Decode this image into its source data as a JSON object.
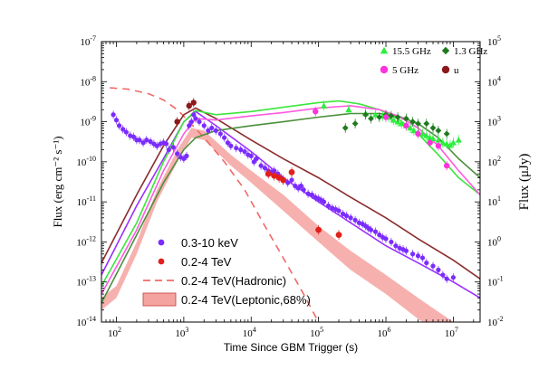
{
  "chart_data": {
    "type": "scatter",
    "title": "",
    "xlabel": "Time Since GBM Trigger (s)",
    "ylabel": "Flux (erg cm⁻² s⁻¹)",
    "ylabel_right": "Flux (μJy)",
    "x_scale": "log",
    "y_scale": "log",
    "xlim": [
      60,
      25000000
    ],
    "ylim": [
      1e-14,
      1e-07
    ],
    "ylim_right": [
      0.01,
      100000
    ],
    "x_ticks": [
      {
        "value": 100,
        "label": "10",
        "exp": "2"
      },
      {
        "value": 1000,
        "label": "10",
        "exp": "3"
      },
      {
        "value": 10000,
        "label": "10",
        "exp": "4"
      },
      {
        "value": 100000,
        "label": "10",
        "exp": "5"
      },
      {
        "value": 1000000,
        "label": "10",
        "exp": "6"
      },
      {
        "value": 10000000,
        "label": "10",
        "exp": "7"
      }
    ],
    "y_ticks": [
      {
        "value": 1e-14,
        "label": "10",
        "exp": "-14"
      },
      {
        "value": 1e-13,
        "label": "10",
        "exp": "-13"
      },
      {
        "value": 1e-12,
        "label": "10",
        "exp": "-12"
      },
      {
        "value": 1e-11,
        "label": "10",
        "exp": "-11"
      },
      {
        "value": 1e-10,
        "label": "10",
        "exp": "-10"
      },
      {
        "value": 1e-09,
        "label": "10",
        "exp": "-9"
      },
      {
        "value": 1e-08,
        "label": "10",
        "exp": "-8"
      },
      {
        "value": 1e-07,
        "label": "10",
        "exp": "-7"
      }
    ],
    "y_ticks_right": [
      {
        "value": 0.01,
        "label": "10",
        "exp": "-2"
      },
      {
        "value": 0.1,
        "label": "10",
        "exp": "-1"
      },
      {
        "value": 1,
        "label": "10",
        "exp": "0"
      },
      {
        "value": 10,
        "label": "10",
        "exp": "1"
      },
      {
        "value": 100,
        "label": "10",
        "exp": "2"
      },
      {
        "value": 1000,
        "label": "10",
        "exp": "3"
      },
      {
        "value": 10000,
        "label": "10",
        "exp": "4"
      },
      {
        "value": 100000,
        "label": "10",
        "exp": "5"
      }
    ],
    "legend": {
      "placement": "bottom-center",
      "entries": [
        {
          "label": "0.3-10 keV",
          "style": "dot",
          "color": "#7a2cff"
        },
        {
          "label": "0.2-4 TeV",
          "style": "dot",
          "color": "#e0201c"
        },
        {
          "label": "0.2-4 TeV(Hadronic)",
          "style": "dash",
          "color": "#ef6a66"
        },
        {
          "label": "0.2-4 TeV(Leptonic,68%)",
          "style": "band",
          "color": "#f4a3a0"
        }
      ]
    },
    "radio_legend": {
      "placement": "top-right",
      "entries": [
        {
          "label": "15.5 GHz",
          "marker": "triangle",
          "color": "#2bef3c"
        },
        {
          "label": "1.3 GHz",
          "marker": "diamond",
          "color": "#1f7a1f"
        },
        {
          "label": "5 GHz",
          "marker": "circle",
          "color": "#ff33dd"
        },
        {
          "label": "u",
          "marker": "circle",
          "color": "#8b1a1a"
        }
      ]
    },
    "series": [
      {
        "name": "0.3-10 keV",
        "kind": "points",
        "color": "#7a2cff",
        "marker": "circle",
        "size": 2.6,
        "x": [
          90,
          100,
          110,
          125,
          140,
          160,
          180,
          200,
          220,
          250,
          280,
          320,
          360,
          400,
          450,
          500,
          550,
          600,
          700,
          800,
          900,
          1000,
          1100,
          1200,
          1300,
          1400,
          1500,
          1700,
          2000,
          2300,
          2600,
          3000,
          3500,
          4000,
          4500,
          5000,
          6000,
          7000,
          8000,
          9000,
          10000,
          11000,
          12000,
          14000,
          16000,
          18000,
          20000,
          22000,
          25000,
          28000,
          30000,
          35000,
          40000,
          45000,
          50000,
          55000,
          60000,
          70000,
          80000,
          90000,
          100000,
          110000,
          120000,
          140000,
          160000,
          180000,
          200000,
          230000,
          260000,
          300000,
          350000,
          400000,
          450000,
          500000,
          550000,
          600000,
          700000,
          800000,
          900000,
          1000000,
          1200000,
          1400000,
          1600000,
          1800000,
          2000000,
          2500000,
          3000000,
          3500000,
          4000000,
          5000000,
          6000000,
          7000000,
          8000000,
          10000000
        ],
        "y": [
          1.5e-09,
          1.1e-09,
          8e-10,
          6.5e-10,
          5.5e-10,
          4.5e-10,
          4.2e-10,
          3.5e-10,
          3.5e-10,
          3e-10,
          3.5e-10,
          3.2e-10,
          2.8e-10,
          2.5e-10,
          2.8e-10,
          3e-10,
          2.8e-10,
          2e-10,
          2.3e-10,
          1.6e-10,
          1.3e-10,
          1.2e-10,
          1.4e-10,
          8e-10,
          1e-09,
          1.5e-09,
          1.2e-09,
          1e-09,
          8e-10,
          6e-10,
          7e-10,
          6e-10,
          5e-10,
          4e-10,
          3e-10,
          2.5e-10,
          2.2e-10,
          2e-10,
          1.8e-10,
          1.5e-10,
          1.4e-10,
          1e-10,
          1.2e-10,
          8e-11,
          7e-11,
          6e-11,
          5.5e-11,
          6e-11,
          5e-11,
          4e-11,
          3.5e-11,
          3e-11,
          3.5e-11,
          2.5e-11,
          2.2e-11,
          2.5e-11,
          2e-11,
          1.6e-11,
          1.5e-11,
          1.3e-11,
          1.2e-11,
          1.1e-11,
          1e-11,
          8e-12,
          7e-12,
          6.5e-12,
          6e-12,
          5e-12,
          4.5e-12,
          4e-12,
          3.5e-12,
          3e-12,
          2.8e-12,
          2.5e-12,
          2.2e-12,
          2e-12,
          1.8e-12,
          1.5e-12,
          1.3e-12,
          1.2e-12,
          1e-12,
          8e-13,
          7e-13,
          6.5e-13,
          6e-13,
          5e-13,
          4.5e-13,
          4e-13,
          3e-13,
          2.5e-13,
          2e-13,
          1.5e-13,
          1.2e-13,
          1.3e-13
        ]
      },
      {
        "name": "0.2-4 TeV",
        "kind": "points",
        "color": "#e0201c",
        "marker": "circle",
        "size": 3.4,
        "x": [
          18000,
          22000,
          26000,
          30000,
          40000,
          100000,
          200000
        ],
        "y": [
          5e-11,
          4.5e-11,
          4e-11,
          3.5e-11,
          5.5e-11,
          2e-12,
          1.5e-12
        ]
      },
      {
        "name": "15.5 GHz",
        "kind": "points",
        "color": "#2bef3c",
        "marker": "triangle",
        "size": 3.6,
        "unit": "uJy",
        "x": [
          120000,
          280000,
          500000,
          700000,
          900000,
          1100000,
          1300000,
          1500000,
          1700000,
          2000000,
          2300000,
          2600000,
          3000000,
          3500000,
          4000000,
          4500000,
          5000000,
          6000000,
          7000000,
          8000000,
          9000000,
          10000000,
          12000000
        ],
        "y": [
          2500,
          2000,
          1600,
          1500,
          1400,
          1300,
          1100,
          1000,
          900,
          800,
          700,
          600,
          550,
          500,
          450,
          400,
          380,
          350,
          300,
          280,
          260,
          300,
          350
        ]
      },
      {
        "name": "1.3 GHz",
        "kind": "points",
        "color": "#1f7a1f",
        "marker": "diamond",
        "size": 3.4,
        "unit": "uJy",
        "x": [
          250000,
          350000,
          500000,
          600000,
          800000,
          1000000,
          1200000,
          1500000,
          2000000,
          2500000,
          3000000,
          4000000,
          5000000,
          6000000,
          8000000
        ],
        "y": [
          700,
          900,
          1500,
          1200,
          1300,
          1500,
          1400,
          1300,
          1200,
          1000,
          900,
          900,
          700,
          600,
          500
        ]
      },
      {
        "name": "5 GHz",
        "kind": "points",
        "color": "#ff33dd",
        "marker": "circle",
        "size": 3.2,
        "unit": "uJy",
        "x": [
          90000,
          1000000,
          2000000,
          3000000,
          4500000,
          6000000,
          8000000
        ],
        "y": [
          1800,
          1300,
          800,
          500,
          300,
          250,
          80
        ]
      },
      {
        "name": "u",
        "kind": "points",
        "color": "#8b1a1a",
        "marker": "circle",
        "size": 3.2,
        "unit": "uJy",
        "x": [
          800,
          1200,
          1400
        ],
        "y": [
          1000,
          2500,
          3000
        ]
      },
      {
        "name": "0.2-4 TeV(Hadronic)",
        "kind": "line",
        "color": "#ef6a66",
        "dash": true,
        "x": [
          80,
          150,
          300,
          500,
          800,
          1200,
          2000,
          4000,
          8000,
          15000,
          30000,
          60000,
          100000,
          200000
        ],
        "y": [
          7e-09,
          6.5e-09,
          5e-09,
          3.5e-09,
          2e-09,
          1e-09,
          4e-10,
          1e-10,
          2e-11,
          3e-12,
          4e-13,
          5e-14,
          1e-14,
          5e-15
        ]
      },
      {
        "name": "0.2-4 TeV(Leptonic,68%)",
        "kind": "band",
        "color": "#f4a3a0",
        "x": [
          60,
          100,
          200,
          400,
          800,
          1300,
          2000,
          5000,
          10000,
          30000,
          100000,
          300000,
          1000000,
          3000000,
          10000000
        ],
        "upper": [
          4e-14,
          8e-14,
          1e-12,
          2e-11,
          2e-10,
          7e-10,
          6e-10,
          1.5e-10,
          6e-11,
          1.5e-11,
          2.5e-12,
          6e-13,
          1.5e-13,
          4e-14,
          1e-14
        ],
        "lower": [
          2e-14,
          4e-14,
          5e-13,
          1e-11,
          1e-10,
          4e-10,
          3.5e-10,
          8e-11,
          3e-11,
          6e-12,
          1e-12,
          2e-13,
          5e-14,
          1.2e-14,
          3e-15
        ]
      },
      {
        "name": "model X-ray (purple)",
        "kind": "line",
        "color": "#9b30ff",
        "x": [
          60,
          200,
          500,
          1000,
          1500,
          3000,
          10000,
          30000,
          100000,
          300000,
          1000000,
          3000000,
          10000000,
          25000000
        ],
        "y": [
          1.5e-13,
          8e-12,
          1.2e-10,
          1e-09,
          1.8e-09,
          8e-10,
          1.8e-10,
          4e-11,
          1e-11,
          3e-12,
          8e-13,
          3e-13,
          1e-13,
          4e-14
        ]
      },
      {
        "name": "model brown (u-band)",
        "kind": "line",
        "color": "#8b2c2c",
        "x": [
          60,
          200,
          500,
          1000,
          1500,
          3000,
          10000,
          30000,
          100000,
          300000,
          1000000,
          3000000,
          10000000,
          25000000
        ],
        "y": [
          3e-13,
          1.5e-11,
          2.5e-10,
          1.5e-09,
          2.2e-09,
          1.2e-09,
          3.5e-10,
          1.2e-10,
          4e-11,
          1.3e-11,
          4e-12,
          1.2e-12,
          3.5e-13,
          1.2e-13
        ]
      },
      {
        "name": "model green (15.5 GHz)",
        "kind": "line",
        "color": "#3ce63c",
        "unit": "uJy",
        "x": [
          60,
          200,
          500,
          1000,
          1500,
          3000,
          10000,
          30000,
          100000,
          200000,
          400000,
          800000,
          1500000,
          3000000,
          6000000,
          12000000,
          25000000
        ],
        "y": [
          0.08,
          3,
          100,
          1000,
          1900,
          1500,
          1800,
          2300,
          3000,
          3300,
          2800,
          2000,
          1200,
          500,
          150,
          40,
          15
        ]
      },
      {
        "name": "model dark green (1.3 GHz)",
        "kind": "line",
        "color": "#4c8f3c",
        "unit": "uJy",
        "x": [
          60,
          200,
          500,
          1000,
          1500,
          3000,
          10000,
          30000,
          100000,
          300000,
          800000,
          1500000,
          3000000,
          6000000,
          12000000,
          25000000
        ],
        "y": [
          0.03,
          1.5,
          30,
          200,
          400,
          600,
          800,
          1000,
          1300,
          1600,
          1600,
          1400,
          900,
          400,
          120,
          40
        ]
      },
      {
        "name": "model magenta (5 GHz)",
        "kind": "line",
        "color": "#ff5ae0",
        "unit": "uJy",
        "x": [
          60,
          200,
          500,
          1000,
          1500,
          3000,
          10000,
          30000,
          100000,
          300000,
          800000,
          1500000,
          3000000,
          6000000,
          12000000,
          25000000
        ],
        "y": [
          0.05,
          2,
          60,
          500,
          1200,
          1100,
          1400,
          1700,
          2200,
          2500,
          2000,
          1400,
          700,
          250,
          60,
          15
        ]
      }
    ]
  }
}
